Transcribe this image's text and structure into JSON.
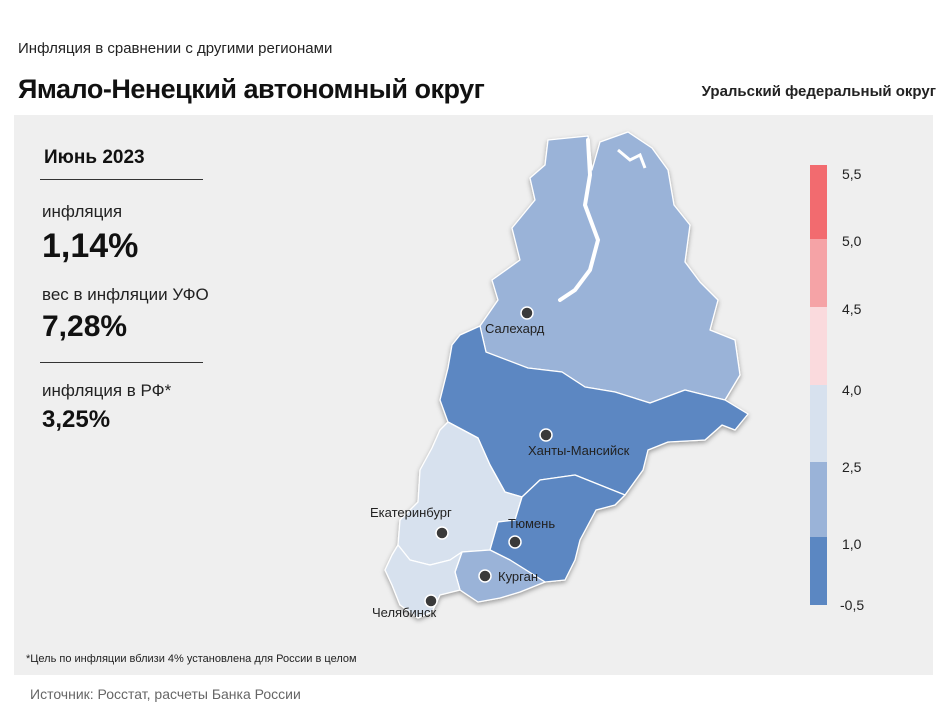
{
  "header": {
    "subtitle": "Инфляция в сравнении с другими регионами",
    "title": "Ямало-Ненецкий автономный округ",
    "district": "Уральский федеральный округ"
  },
  "stats": {
    "period": "Июнь 2023",
    "inflation_label": "инфляция",
    "inflation_value": "1,14%",
    "weight_label": "вес в инфляции УФО",
    "weight_value": "7,28%",
    "rf_label": "инфляция в РФ*",
    "rf_value": "3,25%"
  },
  "cities": {
    "salekhard": "Салехард",
    "khanty": "Ханты-Мансийск",
    "ekaterinburg": "Екатеринбург",
    "tyumen": "Тюмень",
    "kurgan": "Курган",
    "chelyabinsk": "Челябинск"
  },
  "legend": {
    "bins": [
      {
        "from": -0.5,
        "to": 1.0,
        "color": "#5b87c2"
      },
      {
        "from": 1.0,
        "to": 2.5,
        "color": "#9ab3d8"
      },
      {
        "from": 2.5,
        "to": 4.0,
        "color": "#d7e1ee"
      },
      {
        "from": 4.0,
        "to": 4.5,
        "color": "#fadadd"
      },
      {
        "from": 4.5,
        "to": 5.0,
        "color": "#f5a3a6"
      },
      {
        "from": 5.0,
        "to": 5.5,
        "color": "#f26b6f"
      }
    ],
    "ticks": [
      "5,5",
      "5,0",
      "4,5",
      "4,0",
      "2,5",
      "1,0",
      "-0,5"
    ]
  },
  "regions": {
    "yamal": {
      "color": "#9ab3d8"
    },
    "khmao": {
      "color": "#5b87c2"
    },
    "sverdlovsk": {
      "color": "#d7e1ee"
    },
    "tyumen": {
      "color": "#5b87c2"
    },
    "kurgan": {
      "color": "#9ab3d8"
    },
    "chelyabinsk": {
      "color": "#d7e1ee"
    }
  },
  "footnote": "*Цель по инфляции вблизи 4% установлена для России в целом",
  "source": "Источник: Росстат, расчеты Банка России"
}
